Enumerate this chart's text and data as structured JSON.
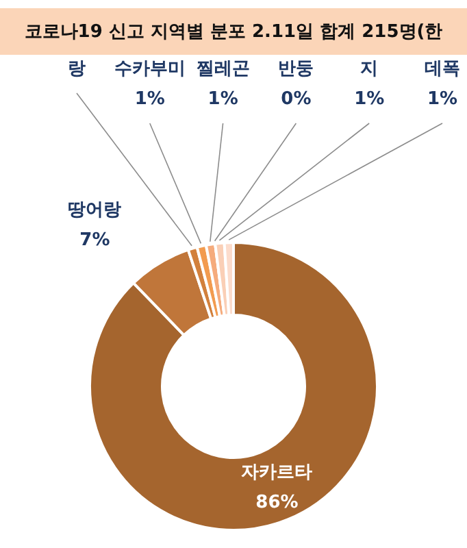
{
  "chart_data": {
    "type": "donut",
    "title": "코로나19 신고 지역별 분포 2.11일 합계 215명(한",
    "categories": [
      "자카르타",
      "땅어랑",
      "랑",
      "수카부미",
      "찔레곤",
      "반둥",
      "지",
      "데폭"
    ],
    "values": [
      86,
      7,
      1,
      1,
      1,
      0,
      1,
      1
    ],
    "value_labels": [
      "86%",
      "7%",
      null,
      "1%",
      "1%",
      "0%",
      "1%",
      "1%"
    ],
    "colors": [
      "#a5652e",
      "#c0763a",
      "#d2803c",
      "#f29b4f",
      "#f5ab7c",
      "#f8bf9c",
      "#facfb6",
      "#fcdccc"
    ]
  }
}
